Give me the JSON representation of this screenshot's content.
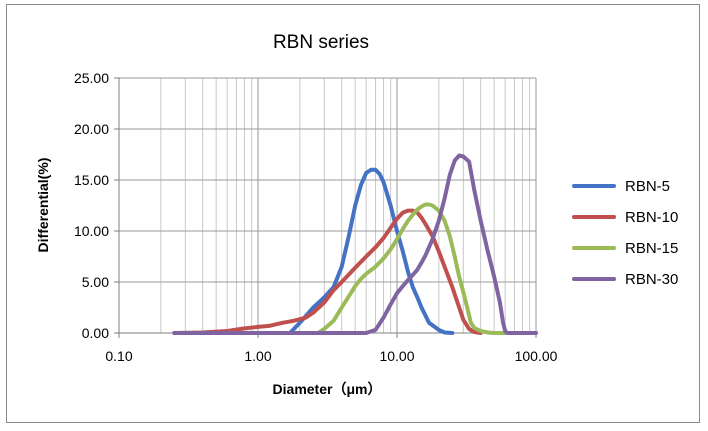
{
  "chart_data": {
    "type": "line",
    "title": "RBN series",
    "xlabel": "Diameter（μm）",
    "ylabel": "Differential(%)",
    "xscale": "log",
    "xlim": [
      0.1,
      100
    ],
    "ylim": [
      0,
      25
    ],
    "xticks": [
      0.1,
      1,
      10,
      100
    ],
    "xtick_labels": [
      "0.10",
      "1.00",
      "10.00",
      "100.00"
    ],
    "yticks": [
      0,
      5,
      10,
      15,
      20,
      25
    ],
    "ytick_labels": [
      "0.00",
      "5.00",
      "10.00",
      "15.00",
      "20.00",
      "25.00"
    ],
    "grid": "vertical minor + major lines, horizontal major lines",
    "legend_position": "right",
    "series": [
      {
        "name": "RBN-5",
        "color": "#4472c4",
        "x": [
          1.7,
          2.0,
          2.5,
          3.0,
          3.5,
          4.0,
          4.5,
          5.0,
          5.5,
          6.0,
          6.5,
          7.0,
          7.5,
          8.0,
          9.0,
          10.0,
          11.0,
          12.0,
          13.0,
          14.0,
          15.0,
          17.0,
          20.0,
          22.0,
          25.0
        ],
        "y": [
          0.0,
          1.0,
          2.5,
          3.5,
          4.5,
          6.5,
          9.5,
          12.5,
          14.5,
          15.7,
          16.0,
          16.0,
          15.6,
          14.8,
          12.5,
          10.0,
          8.0,
          6.0,
          4.5,
          3.5,
          2.5,
          1.0,
          0.3,
          0.05,
          0.0
        ]
      },
      {
        "name": "RBN-10",
        "color": "#c0504d",
        "x": [
          0.25,
          0.4,
          0.6,
          0.8,
          1.0,
          1.2,
          1.5,
          1.8,
          2.2,
          2.5,
          3.0,
          3.5,
          4.0,
          5.0,
          6.0,
          7.0,
          8.0,
          9.0,
          10.0,
          11.0,
          12.0,
          13.0,
          14.0,
          15.0,
          16.0,
          18.0,
          20.0,
          22.0,
          25.0,
          28.0,
          30.0,
          33.0,
          36.0,
          40.0
        ],
        "y": [
          0.0,
          0.05,
          0.2,
          0.45,
          0.6,
          0.7,
          1.0,
          1.2,
          1.5,
          2.0,
          3.0,
          4.2,
          5.0,
          6.4,
          7.5,
          8.4,
          9.3,
          10.3,
          11.2,
          11.8,
          12.0,
          12.0,
          11.8,
          11.3,
          10.7,
          9.5,
          8.0,
          6.5,
          4.5,
          2.5,
          1.3,
          0.4,
          0.1,
          0.0
        ]
      },
      {
        "name": "RBN-15",
        "color": "#9bbb59",
        "x": [
          2.7,
          3.0,
          3.5,
          4.0,
          4.5,
          5.0,
          5.5,
          6.0,
          7.0,
          8.0,
          9.0,
          10.0,
          11.0,
          12.0,
          13.0,
          14.0,
          15.0,
          16.0,
          17.0,
          18.0,
          20.0,
          22.0,
          24.0,
          26.0,
          28.0,
          30.0,
          32.0,
          34.0,
          36.0,
          40.0,
          45.0,
          50.0,
          60.0
        ],
        "y": [
          0.0,
          0.4,
          1.2,
          2.5,
          3.6,
          4.6,
          5.3,
          5.8,
          6.5,
          7.3,
          8.2,
          9.2,
          10.2,
          11.0,
          11.6,
          12.1,
          12.4,
          12.6,
          12.6,
          12.5,
          12.0,
          11.0,
          9.5,
          7.5,
          5.5,
          4.0,
          2.5,
          1.0,
          0.5,
          0.2,
          0.05,
          0.0,
          0.0
        ]
      },
      {
        "name": "RBN-30",
        "color": "#8064a2",
        "x": [
          0.25,
          1.0,
          3.0,
          6.0,
          7.0,
          8.0,
          9.0,
          10.0,
          11.0,
          12.0,
          13.0,
          14.0,
          15.0,
          16.0,
          17.0,
          18.0,
          20.0,
          22.0,
          24.0,
          26.0,
          28.0,
          30.0,
          33.0,
          36.0,
          40.0,
          45.0,
          50.0,
          55.0,
          58.0,
          60.0,
          62.0,
          70.0,
          100.0
        ],
        "y": [
          0.0,
          0.0,
          0.0,
          0.0,
          0.3,
          1.5,
          2.8,
          3.9,
          4.6,
          5.2,
          5.7,
          6.2,
          6.9,
          7.6,
          8.4,
          9.2,
          11.0,
          13.2,
          15.5,
          16.9,
          17.4,
          17.3,
          16.8,
          14.0,
          11.0,
          8.0,
          5.5,
          3.0,
          1.0,
          0.2,
          0.0,
          0.0,
          0.0
        ]
      }
    ]
  }
}
